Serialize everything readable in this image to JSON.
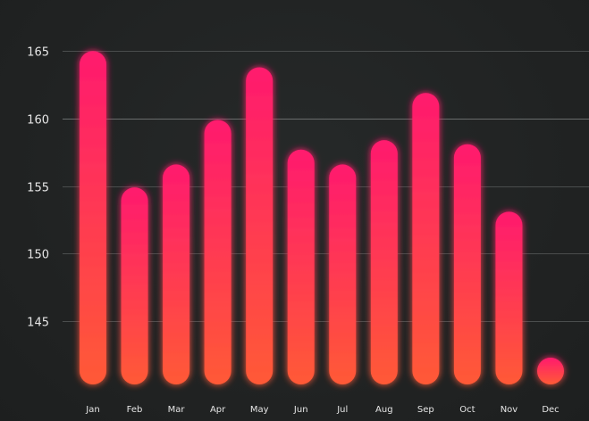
{
  "chart_data": {
    "type": "bar",
    "title": "",
    "xlabel": "",
    "ylabel": "",
    "categories": [
      "Jan",
      "Feb",
      "Mar",
      "Apr",
      "May",
      "Jun",
      "Jul",
      "Aug",
      "Sep",
      "Oct",
      "Nov",
      "Dec"
    ],
    "values": [
      164.0,
      153.9,
      155.6,
      158.9,
      162.8,
      156.7,
      155.6,
      157.4,
      160.9,
      157.1,
      152.1,
      140.8
    ],
    "ylim": [
      140.5,
      166
    ],
    "yticks": [
      145,
      150,
      155,
      160,
      165
    ],
    "grid": true,
    "legend": "none",
    "colors": {
      "background": "#222424",
      "bar_top": "#ff1a6e",
      "bar_bottom": "#ff5a36",
      "bar_glow": "#ff2a5c",
      "grid": "#4a4d4d",
      "text": "#e6e6e6"
    }
  }
}
